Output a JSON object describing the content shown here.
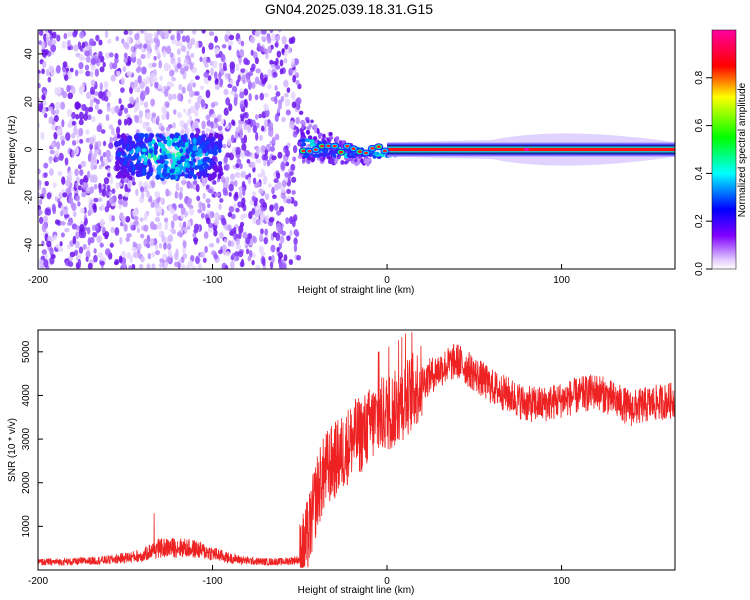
{
  "title": "GN04.2025.039.18.31.G15",
  "chart_data": [
    {
      "type": "heatmap",
      "xlabel": "Height of straight line (km)",
      "ylabel": "Frequency (Hz)",
      "xlim": [
        -200,
        165
      ],
      "ylim": [
        -50,
        50
      ],
      "x_ticks": [
        "-200",
        "-100",
        "0",
        "100"
      ],
      "y_ticks": [
        "40",
        "20",
        "0",
        "-20",
        "-40"
      ],
      "colorbar": {
        "label": "Normalized spectral amplitude",
        "range": [
          0.0,
          1.0
        ],
        "ticks": [
          "0.0",
          "0.2",
          "0.4",
          "0.6",
          "0.8"
        ],
        "colors": [
          "#ffffff",
          "#8000ff",
          "#0000ff",
          "#00ffff",
          "#00ff00",
          "#ffff00",
          "#ff0000",
          "#ff00ff"
        ]
      },
      "noise_region": {
        "x": [
          -200,
          -50
        ],
        "y": [
          -50,
          50
        ],
        "level": 0.15
      },
      "blob_region": {
        "x": [
          -155,
          -95
        ],
        "y": [
          -12,
          6
        ],
        "level": 0.4
      },
      "signal_line": {
        "x": [
          -50,
          165
        ],
        "y_center": 0,
        "peak_level": 0.95
      }
    },
    {
      "type": "line",
      "xlabel": "Height of straight line (km)",
      "ylabel": "SNR (10 * v/v)",
      "xlim": [
        -200,
        165
      ],
      "ylim": [
        0,
        5500
      ],
      "x_ticks": [
        "-200",
        "-100",
        "0",
        "100"
      ],
      "y_ticks": [
        "5000",
        "4000",
        "3000",
        "2000",
        "1000"
      ],
      "color": "#ee2222",
      "series": [
        {
          "x": [
            -200,
            -180,
            -160,
            -140,
            -135,
            -130,
            -120,
            -110,
            -100,
            -90,
            -80,
            -70,
            -60,
            -50,
            -45,
            -40,
            -35,
            -30,
            -25,
            -20,
            -15,
            -10,
            -5,
            0,
            5,
            10,
            20,
            30,
            40,
            50,
            60,
            70,
            80,
            90,
            100,
            110,
            120,
            130,
            140,
            150,
            165
          ],
          "values": [
            180,
            190,
            230,
            330,
            450,
            500,
            520,
            480,
            380,
            270,
            210,
            190,
            190,
            240,
            800,
            1800,
            2300,
            2500,
            2700,
            3000,
            3100,
            3300,
            3500,
            3600,
            3700,
            3900,
            4300,
            4600,
            4800,
            4500,
            4200,
            4000,
            3800,
            3800,
            3900,
            4000,
            4100,
            3900,
            3700,
            3800,
            3900
          ]
        }
      ]
    }
  ]
}
